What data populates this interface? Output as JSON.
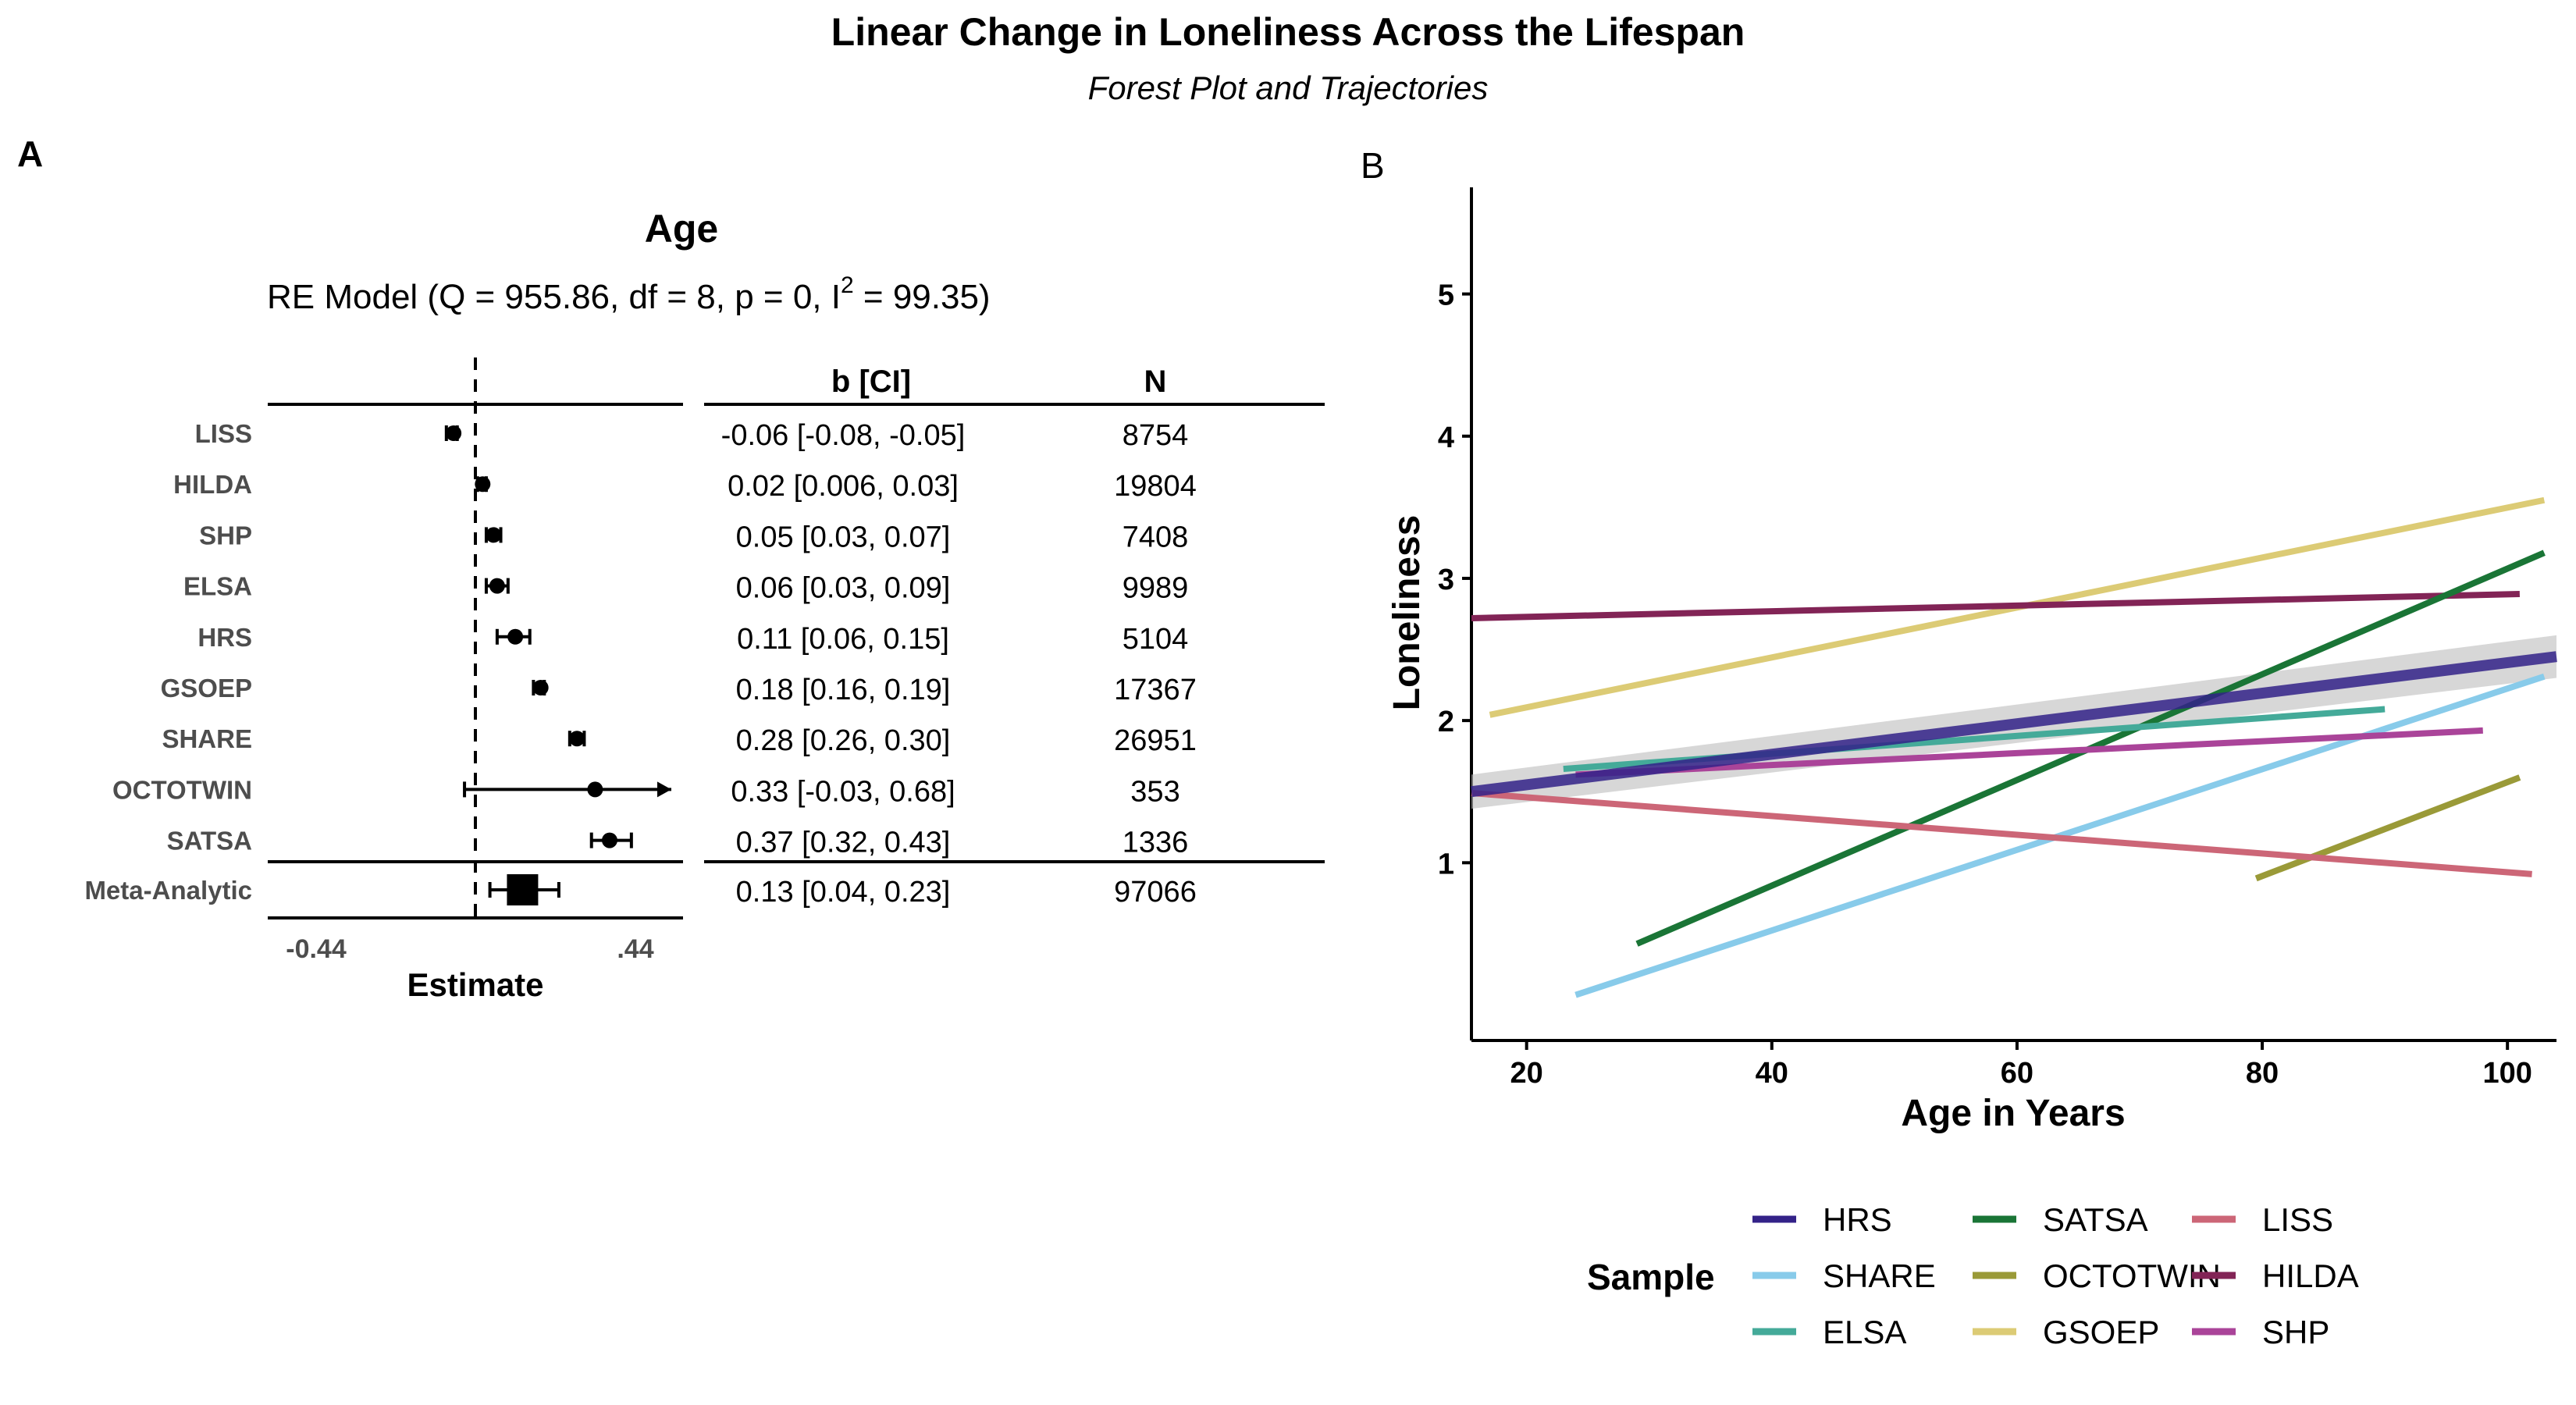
{
  "title": "Linear Change in Loneliness Across the Lifespan",
  "subtitle": "Forest Plot and Trajectories",
  "panel_a": {
    "label": "A",
    "heading": "Age",
    "model_prefix": "RE Model (Q = 955.86, df = 8, p = 0, I",
    "model_sup": "2",
    "model_suffix": " = 99.35)",
    "col_b": "b [CI]",
    "col_n": "N",
    "xlabel": "Estimate",
    "ticks": [
      "-0.44",
      ".44"
    ]
  },
  "panel_b": {
    "label": "B",
    "xlabel": "Age in Years",
    "ylabel": "Loneliness",
    "legend_title": "Sample"
  },
  "chart_data": [
    {
      "type": "forest",
      "xlim": [
        -0.44,
        0.44
      ],
      "xticks": [
        -0.44,
        0.44
      ],
      "reference_line": 0,
      "rows": [
        {
          "name": "LISS",
          "est": -0.06,
          "lo": -0.08,
          "hi": -0.05,
          "ci_text": "-0.06 [-0.08, -0.05]",
          "n": "8754"
        },
        {
          "name": "HILDA",
          "est": 0.02,
          "lo": 0.006,
          "hi": 0.03,
          "ci_text": "0.02 [0.006, 0.03]",
          "n": "19804"
        },
        {
          "name": "SHP",
          "est": 0.05,
          "lo": 0.03,
          "hi": 0.07,
          "ci_text": "0.05 [0.03, 0.07]",
          "n": "7408"
        },
        {
          "name": "ELSA",
          "est": 0.06,
          "lo": 0.03,
          "hi": 0.09,
          "ci_text": "0.06 [0.03, 0.09]",
          "n": "9989"
        },
        {
          "name": "HRS",
          "est": 0.11,
          "lo": 0.06,
          "hi": 0.15,
          "ci_text": "0.11 [0.06, 0.15]",
          "n": "5104"
        },
        {
          "name": "GSOEP",
          "est": 0.18,
          "lo": 0.16,
          "hi": 0.19,
          "ci_text": "0.18 [0.16, 0.19]",
          "n": "17367"
        },
        {
          "name": "SHARE",
          "est": 0.28,
          "lo": 0.26,
          "hi": 0.3,
          "ci_text": "0.28 [0.26, 0.30]",
          "n": "26951"
        },
        {
          "name": "OCTOTWIN",
          "est": 0.33,
          "lo": -0.03,
          "hi": 0.68,
          "ci_text": "0.33 [-0.03, 0.68]",
          "n": "353"
        },
        {
          "name": "SATSA",
          "est": 0.37,
          "lo": 0.32,
          "hi": 0.43,
          "ci_text": "0.37 [0.32, 0.43]",
          "n": "1336"
        }
      ],
      "summary": {
        "name": "Meta-Analytic",
        "est": 0.13,
        "lo": 0.04,
        "hi": 0.23,
        "ci_text": "0.13 [0.04, 0.23]",
        "n": "97066"
      }
    },
    {
      "type": "line",
      "xlabel": "Age in Years",
      "ylabel": "Loneliness",
      "xlim": [
        15.5,
        104
      ],
      "ylim": [
        -0.25,
        5.75
      ],
      "xticks": [
        20,
        40,
        60,
        80,
        100
      ],
      "yticks": [
        1,
        2,
        3,
        4,
        5
      ],
      "legend_title": "Sample",
      "series": [
        {
          "name": "GSOEP",
          "color": "#dccb75",
          "x": [
            17,
            103
          ],
          "y": [
            2.04,
            3.55
          ]
        },
        {
          "name": "HILDA",
          "color": "#822456",
          "x": [
            15.5,
            101
          ],
          "y": [
            2.72,
            2.89
          ]
        },
        {
          "name": "SATSA",
          "color": "#1a7536",
          "x": [
            29,
            103
          ],
          "y": [
            0.43,
            3.18
          ]
        },
        {
          "name": "OCTOTWIN",
          "color": "#9a9a38",
          "x": [
            79.5,
            101
          ],
          "y": [
            0.89,
            1.6
          ]
        },
        {
          "name": "SHARE",
          "color": "#88cbea",
          "x": [
            24,
            103
          ],
          "y": [
            0.07,
            2.31
          ]
        },
        {
          "name": "LISS",
          "color": "#cc6677",
          "x": [
            15.5,
            102
          ],
          "y": [
            1.49,
            0.92
          ]
        },
        {
          "name": "ELSA",
          "color": "#44aa99",
          "x": [
            23,
            90
          ],
          "y": [
            1.66,
            2.08
          ]
        },
        {
          "name": "SHP",
          "color": "#aa4499",
          "x": [
            24,
            98
          ],
          "y": [
            1.62,
            1.93
          ]
        },
        {
          "name": "HRS",
          "color": "#332288",
          "x": [
            15.5,
            104
          ],
          "y": [
            1.5,
            2.45
          ]
        }
      ],
      "meta_band": {
        "x": [
          15.5,
          104
        ],
        "lo": [
          1.38,
          2.3
        ],
        "hi": [
          1.62,
          2.6
        ]
      },
      "legend_order": [
        [
          "HRS",
          "SHARE",
          "ELSA"
        ],
        [
          "SATSA",
          "OCTOTWIN",
          "GSOEP"
        ],
        [
          "LISS",
          "HILDA",
          "SHP"
        ]
      ]
    }
  ]
}
